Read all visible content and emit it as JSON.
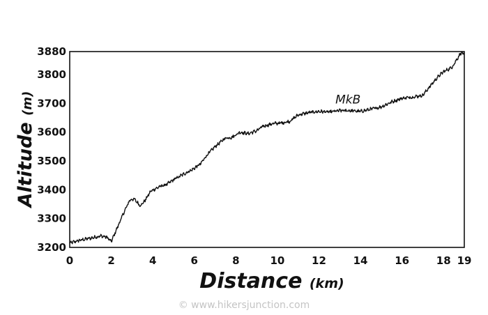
{
  "chart_data": {
    "type": "line",
    "xlabel": "Distance",
    "xlabel_unit": "(km)",
    "ylabel": "Altitude",
    "ylabel_unit": "(m)",
    "xlim": [
      0,
      19
    ],
    "ylim": [
      3200,
      3880
    ],
    "xticks": [
      0,
      2,
      4,
      6,
      8,
      10,
      12,
      14,
      16,
      18,
      19
    ],
    "yticks": [
      3200,
      3300,
      3400,
      3500,
      3600,
      3700,
      3800,
      3880
    ],
    "grid": false,
    "series": [
      {
        "x": [
          0,
          0.5,
          1.0,
          1.5,
          1.8,
          2.0,
          2.3,
          2.6,
          2.9,
          3.1,
          3.4,
          3.6,
          3.9,
          4.3,
          4.7,
          5.0,
          5.5,
          5.9,
          6.3,
          6.6,
          7.0,
          7.5,
          7.8,
          8.2,
          8.6,
          9.0,
          9.3,
          9.8,
          10.2,
          10.6,
          11.0,
          11.5,
          12.0,
          12.5,
          13.0,
          13.5,
          14.0,
          14.5,
          15.0,
          15.5,
          16.0,
          16.5,
          17.0,
          17.3,
          17.7,
          18.0,
          18.4,
          18.7,
          18.85,
          19.0
        ],
        "y": [
          3215,
          3225,
          3232,
          3240,
          3235,
          3220,
          3270,
          3320,
          3365,
          3368,
          3345,
          3360,
          3395,
          3410,
          3420,
          3435,
          3455,
          3470,
          3490,
          3520,
          3550,
          3580,
          3582,
          3600,
          3595,
          3605,
          3620,
          3630,
          3632,
          3638,
          3660,
          3668,
          3672,
          3670,
          3675,
          3675,
          3672,
          3680,
          3688,
          3705,
          3718,
          3722,
          3728,
          3755,
          3790,
          3810,
          3825,
          3860,
          3877,
          3870
        ]
      }
    ],
    "annotations": [
      {
        "text": "MkB",
        "x": 13.4,
        "y": 3690
      }
    ]
  },
  "credit": "© www.hikersjunction.com"
}
